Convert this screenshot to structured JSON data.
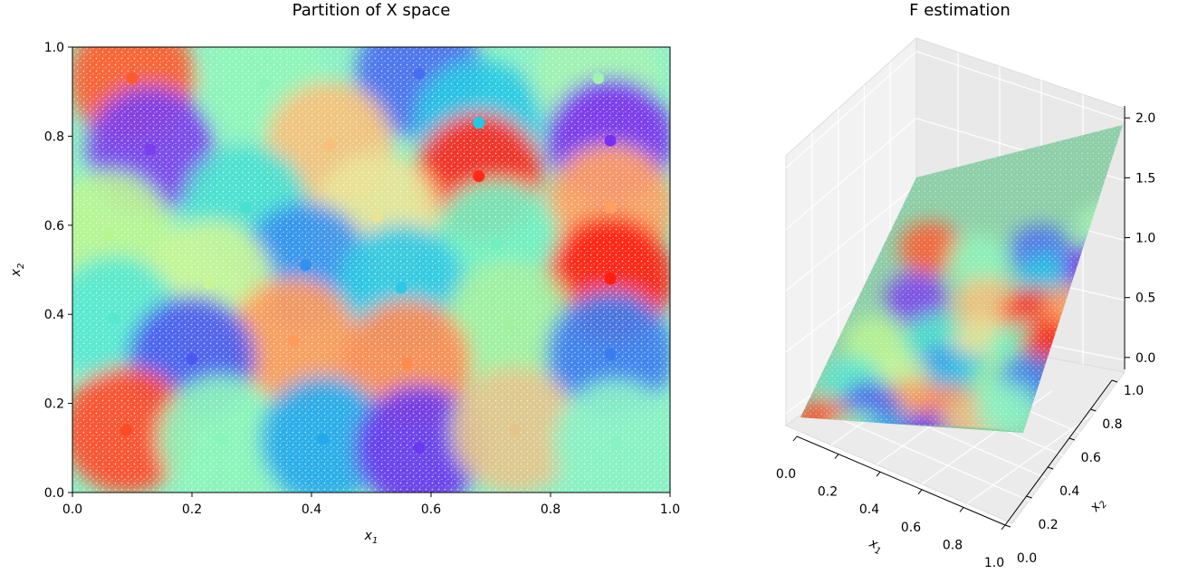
{
  "chart_data": [
    {
      "type": "scatter",
      "title": "Partition of X space",
      "xlabel_base": "x",
      "xlabel_sub": "1",
      "ylabel_base": "x",
      "ylabel_sub": "2",
      "xlim": [
        0.0,
        1.0
      ],
      "ylim": [
        0.0,
        1.0
      ],
      "xticks": [
        "0.0",
        "0.2",
        "0.4",
        "0.6",
        "0.8",
        "1.0"
      ],
      "yticks": [
        "0.0",
        "0.2",
        "0.4",
        "0.6",
        "0.8",
        "1.0"
      ],
      "grid": false,
      "legend": "none",
      "partition_centers": [
        {
          "x": 0.1,
          "y": 0.93,
          "color": "#ff5a2e"
        },
        {
          "x": 0.32,
          "y": 0.92,
          "color": "#8ef5b8"
        },
        {
          "x": 0.58,
          "y": 0.94,
          "color": "#4a6cf0"
        },
        {
          "x": 0.88,
          "y": 0.93,
          "color": "#a2f2b0"
        },
        {
          "x": 0.68,
          "y": 0.83,
          "color": "#22c8e4"
        },
        {
          "x": 0.13,
          "y": 0.77,
          "color": "#7b3fee"
        },
        {
          "x": 0.43,
          "y": 0.78,
          "color": "#f7c07a"
        },
        {
          "x": 0.9,
          "y": 0.79,
          "color": "#7a30f0"
        },
        {
          "x": 0.68,
          "y": 0.71,
          "color": "#ff2a1a"
        },
        {
          "x": 0.06,
          "y": 0.58,
          "color": "#b8f590"
        },
        {
          "x": 0.29,
          "y": 0.64,
          "color": "#48e0d0"
        },
        {
          "x": 0.51,
          "y": 0.62,
          "color": "#e8e496"
        },
        {
          "x": 0.9,
          "y": 0.64,
          "color": "#ffa060"
        },
        {
          "x": 0.39,
          "y": 0.51,
          "color": "#3490f0"
        },
        {
          "x": 0.71,
          "y": 0.56,
          "color": "#70f0c0"
        },
        {
          "x": 0.9,
          "y": 0.48,
          "color": "#ff1c10"
        },
        {
          "x": 0.23,
          "y": 0.47,
          "color": "#c8f596"
        },
        {
          "x": 0.55,
          "y": 0.46,
          "color": "#2cc8e4"
        },
        {
          "x": 0.07,
          "y": 0.39,
          "color": "#56e8d0"
        },
        {
          "x": 0.37,
          "y": 0.34,
          "color": "#ff9a58"
        },
        {
          "x": 0.73,
          "y": 0.38,
          "color": "#a2f0a0"
        },
        {
          "x": 0.2,
          "y": 0.3,
          "color": "#4a5af0"
        },
        {
          "x": 0.56,
          "y": 0.29,
          "color": "#ff8a50"
        },
        {
          "x": 0.9,
          "y": 0.31,
          "color": "#3a7cf0"
        },
        {
          "x": 0.09,
          "y": 0.14,
          "color": "#ff4a26"
        },
        {
          "x": 0.25,
          "y": 0.12,
          "color": "#8af5b8"
        },
        {
          "x": 0.42,
          "y": 0.12,
          "color": "#24a8ec"
        },
        {
          "x": 0.58,
          "y": 0.1,
          "color": "#6a38ee"
        },
        {
          "x": 0.74,
          "y": 0.14,
          "color": "#e4c48a"
        },
        {
          "x": 0.91,
          "y": 0.11,
          "color": "#88f2c4"
        }
      ]
    },
    {
      "type": "surface3d",
      "title": "F estimation",
      "xlabel_base": "x",
      "xlabel_sub": "1",
      "ylabel_base": "x",
      "ylabel_sub": "2",
      "xlim": [
        0.0,
        1.0
      ],
      "ylim": [
        0.0,
        1.0
      ],
      "zlim": [
        -0.1,
        2.1
      ],
      "xticks": [
        "0.0",
        "0.2",
        "0.4",
        "0.6",
        "0.8",
        "1.0"
      ],
      "yticks": [
        "0.0",
        "0.2",
        "0.4",
        "0.6",
        "0.8",
        "1.0"
      ],
      "zticks": [
        "0.0",
        "0.5",
        "1.0",
        "1.5",
        "2.0"
      ],
      "grid": true,
      "legend": "none"
    }
  ]
}
